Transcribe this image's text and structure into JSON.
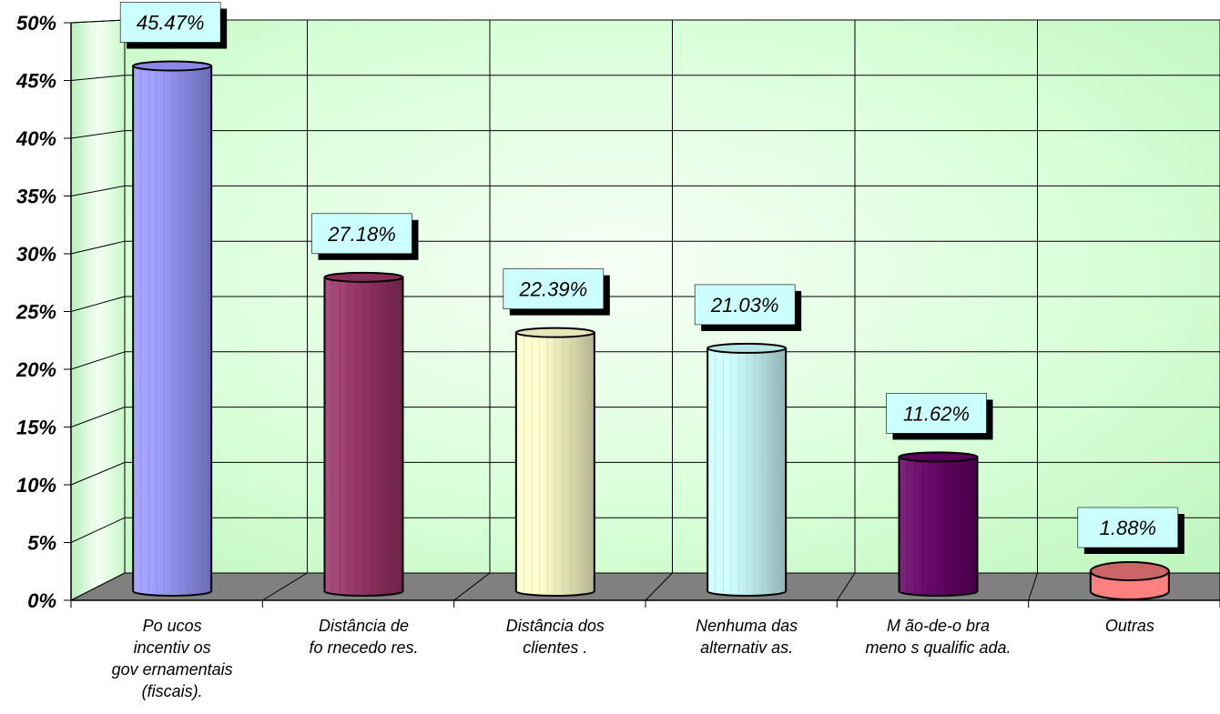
{
  "chart_data": {
    "type": "bar",
    "categories": [
      "Poucos incentivos governamentais (fiscais).",
      "Distância de fornecedores.",
      "Distância dos clientes.",
      "Nenhuma das alternativas.",
      "Mão-de-obra menos qualificada.",
      "Outras"
    ],
    "category_lines": [
      [
        "Po ucos",
        "incentiv os",
        "gov ernamentais",
        "(fiscais)."
      ],
      [
        "Distância de",
        "fo rnecedo res."
      ],
      [
        "Distância dos",
        "clientes ."
      ],
      [
        "Nenhuma das",
        "alternativ as."
      ],
      [
        "M ão-de-o bra",
        "meno s qualific ada."
      ],
      [
        "Outras"
      ]
    ],
    "values": [
      45.47,
      27.18,
      22.39,
      21.03,
      11.62,
      1.88
    ],
    "data_labels": [
      "45.47%",
      "27.18%",
      "22.39%",
      "21.03%",
      "11.62%",
      "1.88%"
    ],
    "y_ticks": [
      "0%",
      "5%",
      "10%",
      "15%",
      "20%",
      "25%",
      "30%",
      "35%",
      "40%",
      "45%",
      "50%"
    ],
    "ylim": [
      0,
      50
    ],
    "grid": true,
    "legend": "none",
    "colors": {
      "bars": [
        "#9999ff",
        "#993366",
        "#ffffcc",
        "#ccffff",
        "#660066",
        "#ff8080"
      ],
      "back_wall": "#ccffcc",
      "floor": "#808080",
      "label_box": "#ccffff"
    }
  }
}
